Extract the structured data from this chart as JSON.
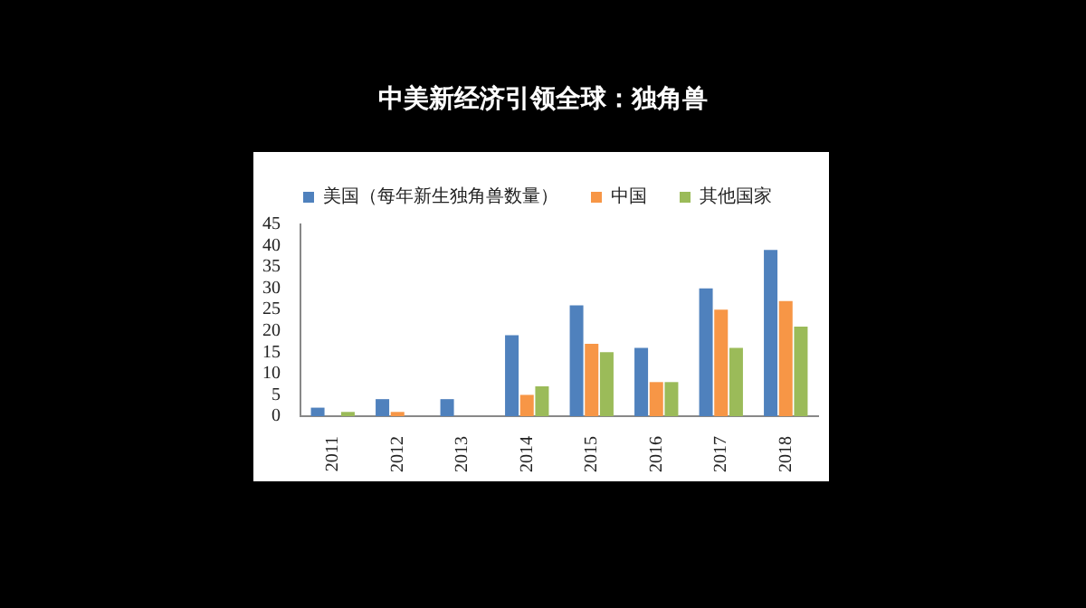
{
  "chart_data": {
    "type": "bar",
    "title": "中美新经济引领全球：独角兽",
    "categories": [
      "2011",
      "2012",
      "2013",
      "2014",
      "2015",
      "2016",
      "2017",
      "2018"
    ],
    "series": [
      {
        "name": "美国（每年新生独角兽数量）",
        "color": "#4f81bd",
        "values": [
          2,
          4,
          4,
          19,
          26,
          16,
          30,
          39
        ]
      },
      {
        "name": "中国",
        "color": "#f79646",
        "values": [
          0,
          1,
          0,
          5,
          17,
          8,
          25,
          27
        ]
      },
      {
        "name": "其他国家",
        "color": "#9bbb59",
        "values": [
          1,
          0,
          0,
          7,
          15,
          8,
          16,
          21
        ]
      }
    ],
    "ylim": [
      0,
      45
    ],
    "yticks": [
      0,
      5,
      10,
      15,
      20,
      25,
      30,
      35,
      40,
      45
    ],
    "grid": false,
    "legend": "top"
  }
}
